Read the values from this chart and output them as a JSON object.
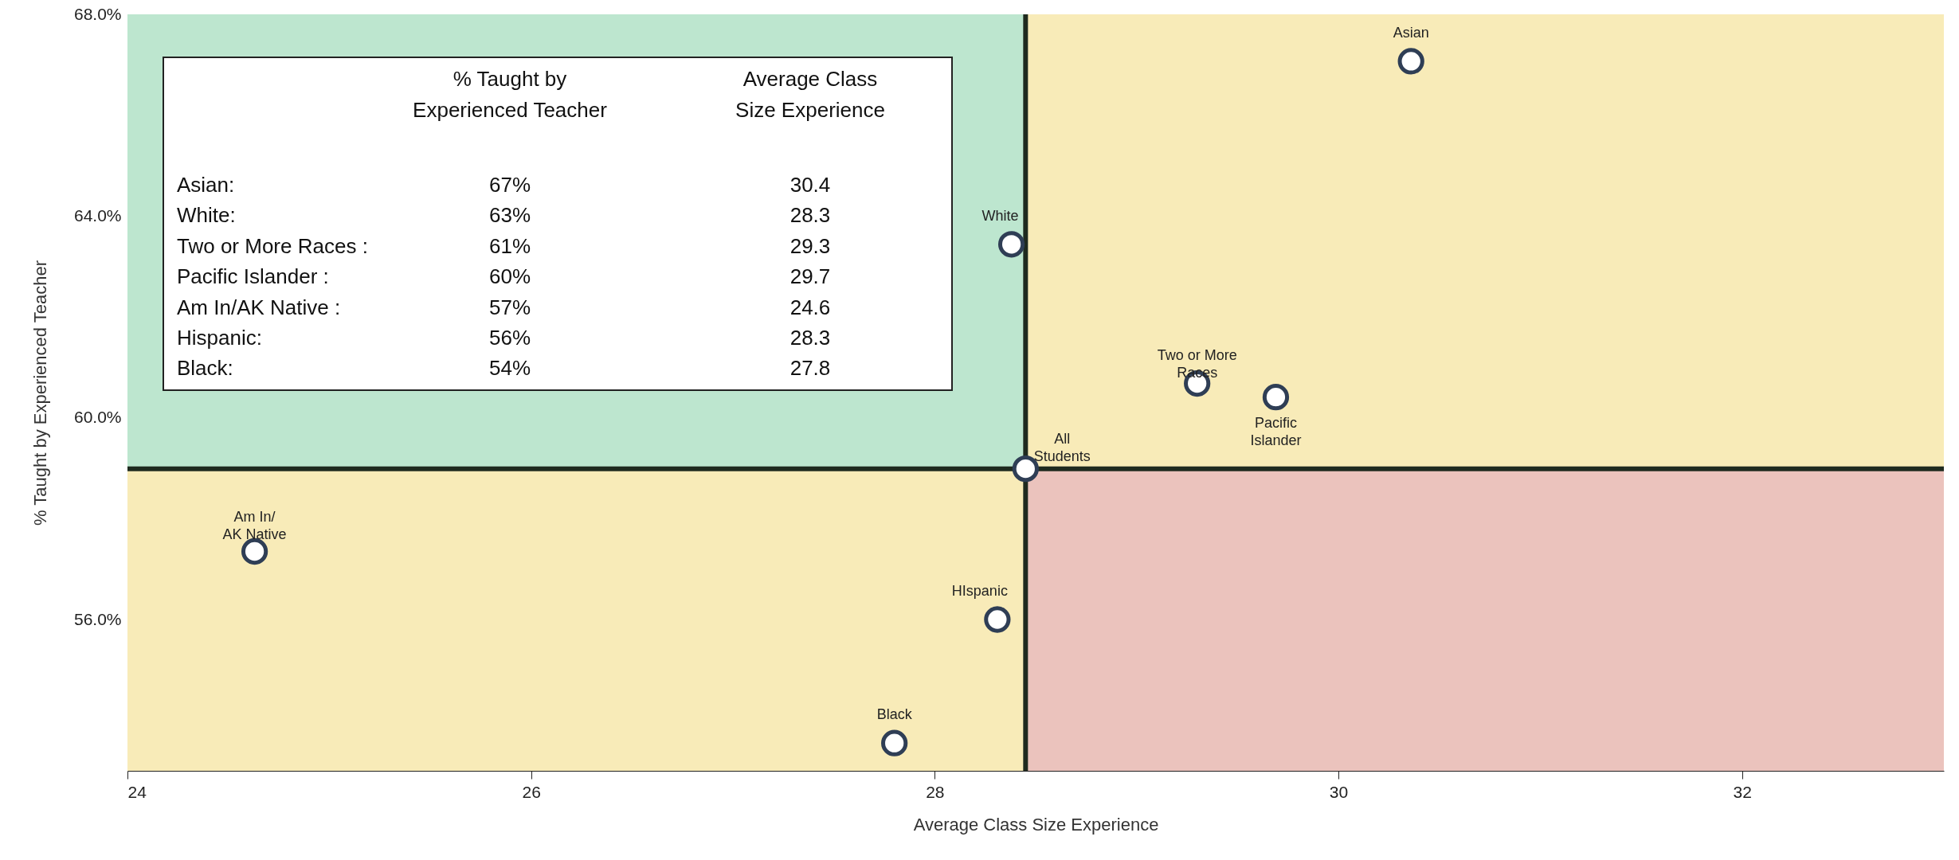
{
  "chart_data": {
    "type": "scatter",
    "xlabel": "Average Class Size Experience",
    "ylabel": "% Taught by Experienced Teacher",
    "x": [
      30.36,
      28.38,
      29.3,
      29.69,
      28.45,
      24.63,
      28.31,
      27.8
    ],
    "series": [
      {
        "color": "#2f3e55",
        "values": [
          67.07,
          63.44,
          60.68,
          60.41,
          58.99,
          57.35,
          56.0,
          53.55
        ]
      }
    ],
    "xlim": [
      24,
      33
    ],
    "xticks": [
      24,
      26,
      28,
      30,
      32
    ],
    "ylim": [
      53,
      68
    ],
    "yticks": [
      {
        "value": 56,
        "label": "56.0%"
      },
      {
        "value": 60,
        "label": "60.0%"
      },
      {
        "value": 64,
        "label": "64.0%"
      },
      {
        "value": 68,
        "label": "68.0%"
      }
    ],
    "marker": "circle",
    "grid": false,
    "bands": [
      {
        "axis": "y",
        "from": 58.99,
        "to": 68,
        "color": "#f8ebb8"
      },
      {
        "axis": "y",
        "from": 53,
        "to": 58.99,
        "color": "#f8ebb8"
      },
      {
        "axis": "x",
        "from": 24,
        "to": 28.45,
        "color": "#bde6cf"
      },
      {
        "axis": "x",
        "from": 28.45,
        "to": 33,
        "color": "#ebc3bd"
      }
    ],
    "ref_lines": [
      {
        "axis": "x",
        "value": 28.45,
        "color": "#1f2a1f"
      },
      {
        "axis": "y",
        "value": 58.99,
        "color": "#1f2a1f"
      }
    ],
    "annotations": [
      {
        "text": "Asian",
        "x": 30.36,
        "y": 67.07
      },
      {
        "text": "White",
        "x": 28.38,
        "y": 63.44
      },
      {
        "text": "Two or More\nRaces",
        "x": 29.3,
        "y": 60.68
      },
      {
        "text": "Pacific\nIslander",
        "x": 29.69,
        "y": 60.41
      },
      {
        "text": "All\nStudents",
        "x": 28.45,
        "y": 58.99
      },
      {
        "text": "Am In/\nAK Native",
        "x": 24.63,
        "y": 57.35
      },
      {
        "text": "HIspanic",
        "x": 28.31,
        "y": 56.0
      },
      {
        "text": "Black",
        "x": 27.8,
        "y": 53.55
      },
      "% Taught by\nExperienced Teacher",
      "Average Class\nSize Experience",
      "Asian:",
      "67%",
      "30.4",
      "White:",
      "63%",
      "28.3",
      "Two or More Races :",
      "61%",
      "29.3",
      "Pacific Islander  :",
      "60%",
      "29.7",
      "Am In/AK Native :",
      "57%",
      "24.6",
      "Hispanic:",
      "56%",
      "28.3",
      "Black:",
      "54%",
      "27.8"
    ]
  }
}
